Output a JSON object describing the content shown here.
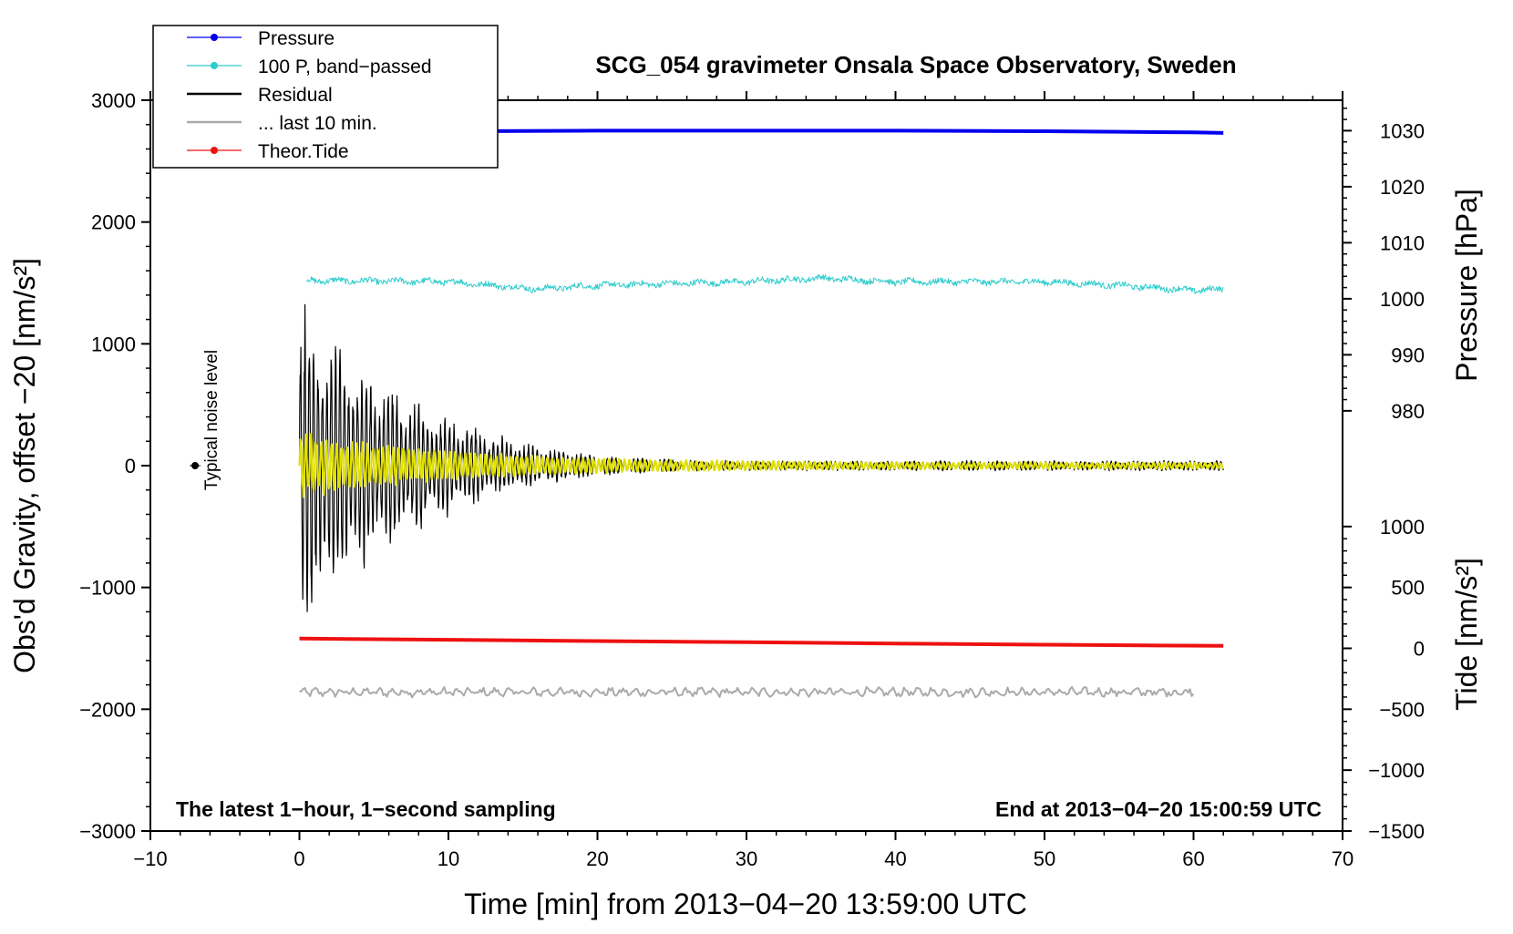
{
  "chart_data": {
    "type": "line",
    "title": "SCG_054 gravimeter Onsala Space Observatory, Sweden",
    "xlabel": "Time [min] from 2013−04−20 13:59:00 UTC",
    "ylabel_left": "Obs'd Gravity, offset −20 [nm/s²]",
    "ylabel_pressure": "Pressure [hPa]",
    "ylabel_tide": "Tide [nm/s²]",
    "note_left": "The latest 1−hour, 1−second sampling",
    "note_right": "End at 2013−04−20 15:00:59 UTC",
    "noise_label": "Typical noise level",
    "xlim": [
      -10,
      70
    ],
    "ylim_left": [
      -3000,
      3000
    ],
    "x_ticks": [
      {
        "value": -10,
        "label": "−10"
      },
      {
        "value": 0,
        "label": "0"
      },
      {
        "value": 10,
        "label": "10"
      },
      {
        "value": 20,
        "label": "20"
      },
      {
        "value": 30,
        "label": "30"
      },
      {
        "value": 40,
        "label": "40"
      },
      {
        "value": 50,
        "label": "50"
      },
      {
        "value": 60,
        "label": "60"
      },
      {
        "value": 70,
        "label": "70"
      }
    ],
    "y_ticks_left": [
      {
        "value": 3000,
        "label": "3000"
      },
      {
        "value": 2000,
        "label": "2000"
      },
      {
        "value": 1000,
        "label": "1000"
      },
      {
        "value": 0,
        "label": "0"
      },
      {
        "value": -1000,
        "label": "−1000"
      },
      {
        "value": -2000,
        "label": "−2000"
      },
      {
        "value": -3000,
        "label": "−3000"
      }
    ],
    "pressure_axis": {
      "range": [
        980,
        1030
      ],
      "left_equivalent_range": [
        450,
        2750
      ],
      "ticks": [
        {
          "value": 1030,
          "label": "1030"
        },
        {
          "value": 1020,
          "label": "1020"
        },
        {
          "value": 1010,
          "label": "1010"
        },
        {
          "value": 1000,
          "label": "1000"
        },
        {
          "value": 990,
          "label": "990"
        },
        {
          "value": 980,
          "label": "980"
        }
      ]
    },
    "tide_axis": {
      "range": [
        -1500,
        1000
      ],
      "left_equivalent_range": [
        -3000,
        -500
      ],
      "ticks": [
        {
          "value": 1000,
          "label": "1000"
        },
        {
          "value": 500,
          "label": "500"
        },
        {
          "value": 0,
          "label": "0"
        },
        {
          "value": -500,
          "label": "−500"
        },
        {
          "value": -1000,
          "label": "−1000"
        },
        {
          "value": -1500,
          "label": "−1500"
        }
      ]
    },
    "legend": [
      {
        "name": "Pressure",
        "color": "#0000ee",
        "marker": true
      },
      {
        "name": "100 P, band−passed",
        "color": "#2ecccc",
        "marker": true
      },
      {
        "name": "Residual",
        "color": "#000000",
        "marker": false
      },
      {
        "name": "... last 10 min.",
        "color": "#aaaaaa",
        "marker": false
      },
      {
        "name": "Theor.Tide",
        "color": "#ee1111",
        "marker": true
      }
    ],
    "series": [
      {
        "name": "Pressure",
        "axis": "pressure",
        "color": "#0000ee",
        "x": [
          0,
          10,
          20,
          30,
          40,
          50,
          55,
          60,
          62
        ],
        "values": [
          1029.8,
          1029.9,
          1030.0,
          1030.0,
          1030.0,
          1029.9,
          1029.8,
          1029.7,
          1029.6
        ]
      },
      {
        "name": "100 P, band−passed",
        "axis": "left",
        "color": "#2ecccc",
        "x": [
          0.5,
          10,
          16,
          20,
          30,
          35,
          40,
          50,
          55,
          60,
          62
        ],
        "center": [
          1520,
          1510,
          1450,
          1480,
          1510,
          1540,
          1510,
          1510,
          1480,
          1440,
          1450
        ],
        "noise_amplitude": 30
      },
      {
        "name": "Residual",
        "axis": "left",
        "color": "#000000",
        "x_start": 0,
        "x_end": 62,
        "decay_scale_min": 8,
        "envelope": [
          1200,
          900,
          700,
          550,
          400,
          300,
          220,
          150,
          110,
          80,
          60,
          50,
          40,
          35
        ]
      },
      {
        "name": "... last 10 min. (highlighted)",
        "axis": "left",
        "color": "#e0e000",
        "x_start": 0,
        "x_end": 62,
        "amplitude_start": 200,
        "amplitude_end": 20
      },
      {
        "name": "... last 10 min.",
        "axis": "left",
        "color": "#aaaaaa",
        "x_start": 0,
        "x_end": 60,
        "center": -1860,
        "noise_amplitude": 40
      },
      {
        "name": "Theor.Tide",
        "axis": "tide",
        "color": "#ee1111",
        "x": [
          0,
          10,
          20,
          30,
          40,
          50,
          62
        ],
        "values": [
          80,
          70,
          60,
          50,
          40,
          30,
          20
        ]
      }
    ],
    "noise_point": {
      "x": -7,
      "y": 0
    }
  }
}
